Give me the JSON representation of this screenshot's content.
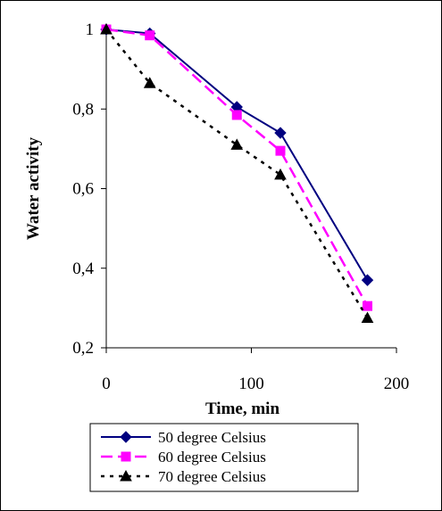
{
  "chart_data": {
    "type": "line",
    "xlabel": "Time, min",
    "ylabel": "Water activity",
    "xlim": [
      0,
      200
    ],
    "ylim": [
      0.2,
      1.0
    ],
    "xticks": [
      0,
      100,
      200
    ],
    "xtick_labels": [
      "0",
      "100",
      "200"
    ],
    "yticks": [
      0.2,
      0.4,
      0.6,
      0.8,
      1.0
    ],
    "ytick_labels": [
      "0,2",
      "0,4",
      "0,6",
      "0,8",
      "1"
    ],
    "grid": false,
    "legend_position": "bottom",
    "series": [
      {
        "name": "50 degree Celsius",
        "color": "#000080",
        "marker": "diamond",
        "line_style": "solid",
        "x": [
          0,
          30,
          90,
          120,
          180
        ],
        "y": [
          1.0,
          0.99,
          0.805,
          0.74,
          0.37
        ]
      },
      {
        "name": "60 degree Celsius",
        "color": "#ff00ff",
        "marker": "square",
        "line_style": "dashed",
        "x": [
          0,
          30,
          90,
          120,
          180
        ],
        "y": [
          1.0,
          0.985,
          0.785,
          0.695,
          0.305
        ]
      },
      {
        "name": "70 degree Celsius",
        "color": "#000000",
        "marker": "triangle",
        "line_style": "dotted",
        "x": [
          0,
          30,
          90,
          120,
          180
        ],
        "y": [
          1.0,
          0.865,
          0.71,
          0.635,
          0.275
        ]
      }
    ]
  }
}
